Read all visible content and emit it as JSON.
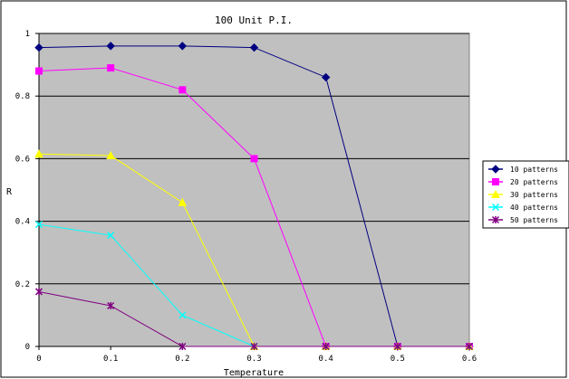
{
  "chart_data": {
    "type": "line",
    "title": "100 Unit P.I.",
    "xlabel": "Temperature",
    "ylabel": "R",
    "x": [
      0,
      0.1,
      0.2,
      0.3,
      0.4,
      0.5,
      0.6
    ],
    "xlim": [
      0,
      0.6
    ],
    "ylim": [
      0,
      1
    ],
    "x_ticks": [
      "0",
      "0.1",
      "0.2",
      "0.3",
      "0.4",
      "0.5",
      "0.6"
    ],
    "y_ticks": [
      "0",
      "0.2",
      "0.4",
      "0.6",
      "0.8",
      "1"
    ],
    "grid": "horizontal",
    "legend_position": "right",
    "series": [
      {
        "name": "10 patterns",
        "color": "#000080",
        "marker": "diamond",
        "values": [
          0.955,
          0.96,
          0.96,
          0.955,
          0.86,
          0.0,
          0.0
        ]
      },
      {
        "name": "20 patterns",
        "color": "#FF00FF",
        "marker": "square",
        "values": [
          0.88,
          0.89,
          0.82,
          0.6,
          0.0,
          0.0,
          0.0
        ]
      },
      {
        "name": "30 patterns",
        "color": "#FFFF00",
        "marker": "triangle",
        "values": [
          0.615,
          0.61,
          0.46,
          0.0,
          0.0,
          0.0,
          0.0
        ]
      },
      {
        "name": "40 patterns",
        "color": "#00FFFF",
        "marker": "x",
        "values": [
          0.39,
          0.355,
          0.1,
          0.0,
          0.0,
          0.0,
          0.0
        ]
      },
      {
        "name": "50 patterns",
        "color": "#800080",
        "marker": "star",
        "values": [
          0.175,
          0.13,
          0.0,
          0.0,
          0.0,
          0.0,
          0.0
        ]
      }
    ]
  }
}
